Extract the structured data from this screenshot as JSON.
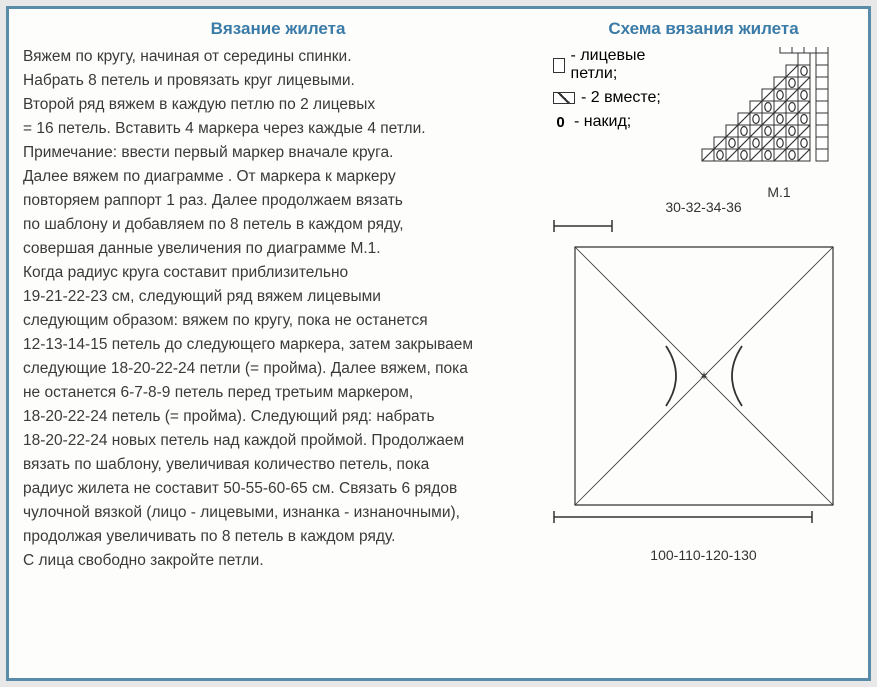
{
  "left": {
    "title": "Вязание жилета",
    "lines": [
      "Вяжем по кругу, начиная от середины спинки.",
      "Набрать 8 петель и провязать круг лицевыми.",
      " Второй ряд вяжем в каждую петлю по 2 лицевых",
      " = 16 петель. Вставить 4 маркера через каждые 4 петли.",
      "Примечание: ввести первый маркер вначале круга.",
      "Далее вяжем по диаграмме . От маркера к маркеру",
      "повторяем раппорт 1 раз. Далее продолжаем вязать",
      "по шаблону и добавляем по 8 петель в каждом ряду,",
      "совершая данные увеличения по диаграмме М.1.",
      "Когда радиус круга составит приблизительно",
      "19-21-22-23 см, следующий ряд вяжем лицевыми",
      "следующим образом: вяжем по кругу, пока не останется",
      "12-13-14-15 петель до следующего маркера, затем закрываем",
      "следующие 18-20-22-24 петли (= пройма). Далее вяжем, пока",
      "не останется 6-7-8-9 петель перед третьим маркером,",
      "18-20-22-24 петель (= пройма). Следующий ряд: набрать",
      "18-20-22-24 новых петель над каждой проймой. Продолжаем",
      "вязать по шаблону, увеличивая количество петель, пока",
      "радиус жилета не составит 50-55-60-65 см. Связать 6 рядов",
      "чулочной вязкой (лицо - лицевыми, изнанка - изнаночными),",
      "продолжая увеличивать по 8 петель в каждом ряду.",
      "С лица свободно закройте петли."
    ]
  },
  "right": {
    "title": "Схема вязания жилета",
    "legend": {
      "knit": "- лицевые петли;",
      "k2tog": "- 2 вместе;",
      "yo": "- накид;",
      "yo_symbol": "0"
    },
    "chart_label": "M.1",
    "top_measure": "30-32-34-36",
    "bottom_measure": "100-110-120-130",
    "chart": {
      "rows": 9,
      "max_cols_left": 9,
      "side_column_height": 9,
      "colors": {
        "line": "#333333",
        "fill": "#ffffff"
      }
    },
    "diagram": {
      "size": 260,
      "stroke": "#333333",
      "arc_radius": 42,
      "star_size": 5
    }
  },
  "colors": {
    "frame_border": "#5a8ba8",
    "title": "#3b7ba8",
    "text": "#3a3a3a",
    "bg": "#fdfdfb"
  }
}
